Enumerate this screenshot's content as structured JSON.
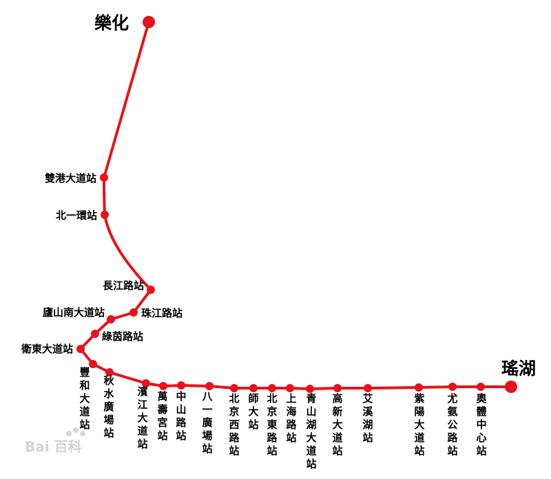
{
  "map": {
    "line_color": "#e8121a",
    "terminals": {
      "north": "樂化",
      "east": "瑤湖"
    },
    "stations": [
      "雙港大道站",
      "北一環站",
      "長江路站",
      "珠江路站",
      "廬山南大道站",
      "綠茵路站",
      "衛東大道站",
      "豐和大道站",
      "秋水廣場站",
      "濱江大道站",
      "萬壽宮站",
      "中山路站",
      "八一廣場站",
      "北京西路站",
      "師大站",
      "北京東路站",
      "上海路站",
      "青山湖大道站",
      "高新大道站",
      "艾溪湖站",
      "紫陽大道站",
      "尤氨公路站",
      "奧體中心站"
    ],
    "watermark": "Bai 百科"
  }
}
